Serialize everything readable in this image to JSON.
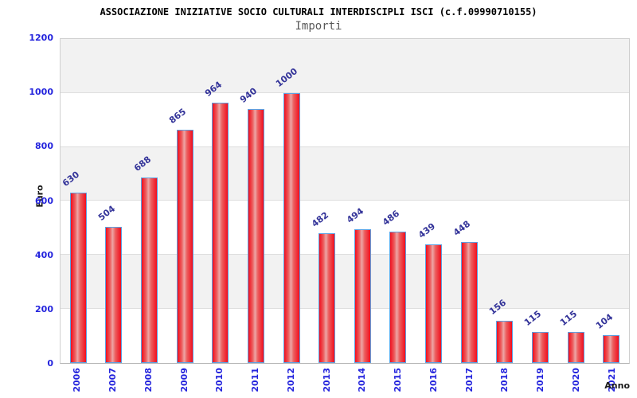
{
  "title": "ASSOCIAZIONE INIZIATIVE SOCIO CULTURALI INTERDISCIPLI ISCI (c.f.09990710155)",
  "subtitle": "Importi",
  "chart_data": {
    "type": "bar",
    "title": "ASSOCIAZIONE INIZIATIVE SOCIO CULTURALI INTERDISCIPLI ISCI (c.f.09990710155)",
    "subtitle": "Importi",
    "categories": [
      "2006",
      "2007",
      "2008",
      "2009",
      "2010",
      "2011",
      "2012",
      "2013",
      "2014",
      "2015",
      "2016",
      "2017",
      "2018",
      "2019",
      "2020",
      "2021"
    ],
    "values": [
      630,
      504,
      688,
      865,
      964,
      940,
      1000,
      482,
      494,
      486,
      439,
      448,
      156,
      115,
      115,
      104
    ],
    "xlabel": "Anno",
    "ylabel": "Euro",
    "ylim": [
      0,
      1200
    ],
    "yticks": [
      0,
      200,
      400,
      600,
      800,
      1000,
      1200
    ],
    "grid": "alternating horizontal bands every 200 units, gray band at top",
    "legend": "none",
    "bar_value_labels_rotated": true,
    "x_labels_rotated_vertical": true
  },
  "colors": {
    "bar_fill_edge": "#f10e1e",
    "bar_fill_center": "#eda6a6",
    "bar_border": "#5da1e2",
    "axis_tick_label": "#2424dd",
    "bar_value_label": "#333399",
    "band_gray": "#f2f2f2",
    "grid_line": "#dedede",
    "plot_border": "#cfcfcf",
    "title_color": "#000000",
    "subtitle_color": "#595959",
    "axis_title_color": "#1a1a1a",
    "background": "#ffffff"
  }
}
